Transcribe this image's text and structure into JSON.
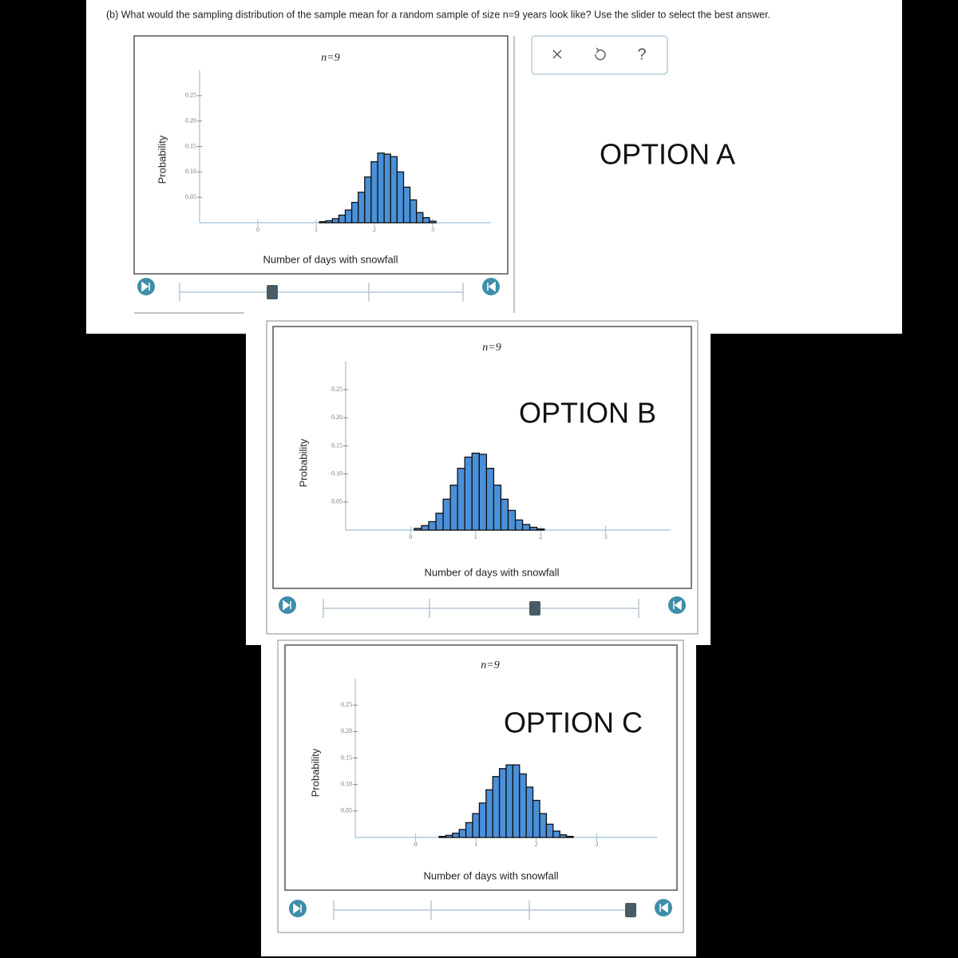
{
  "question": "(b) What would the sampling distribution of the sample mean for a random sample of size n=9 years look like? Use the slider to select the best answer.",
  "help_button": "?",
  "chart_data": [
    {
      "type": "histogram",
      "title": "n=9",
      "annotation": "OPTION A",
      "x_label": "Number of days with snowfall",
      "y_label": "Probability",
      "bins": [
        1.056,
        1.167,
        1.278,
        1.389,
        1.5,
        1.611,
        1.722,
        1.833,
        1.944,
        2.056,
        2.167,
        2.278,
        2.389,
        2.5,
        2.611,
        2.722,
        2.833,
        2.944,
        3.056
      ],
      "values": [
        0.002,
        0.004,
        0.008,
        0.015,
        0.025,
        0.04,
        0.06,
        0.09,
        0.12,
        0.137,
        0.135,
        0.13,
        0.1,
        0.07,
        0.045,
        0.02,
        0.01,
        0.003
      ],
      "color": "#4a90d9",
      "xlim": [
        -1,
        4
      ],
      "ylim": [
        0,
        0.3
      ],
      "xticks": [
        0,
        1,
        2,
        3
      ],
      "yticks": [
        0.05,
        {
          "value": 0.1,
          "label": "0.10"
        },
        0.15,
        {
          "value": 0.2,
          "label": "0.20"
        },
        0.25
      ]
    },
    {
      "type": "histogram",
      "title": "n=9",
      "annotation": "OPTION B",
      "x_label": "Number of days with snowfall",
      "y_label": "Probability",
      "bins": [
        0.056,
        0.167,
        0.278,
        0.389,
        0.5,
        0.611,
        0.722,
        0.833,
        0.944,
        1.056,
        1.167,
        1.278,
        1.389,
        1.5,
        1.611,
        1.722,
        1.833,
        1.944,
        2.056
      ],
      "values": [
        0.003,
        0.008,
        0.015,
        0.03,
        0.055,
        0.08,
        0.11,
        0.13,
        0.137,
        0.135,
        0.11,
        0.08,
        0.055,
        0.035,
        0.018,
        0.01,
        0.005,
        0.002
      ],
      "color": "#4a90d9",
      "xlim": [
        -1,
        4
      ],
      "ylim": [
        0,
        0.3
      ],
      "xticks": [
        0,
        1,
        2,
        3
      ],
      "yticks": [
        0.05,
        {
          "value": 0.1,
          "label": "0.10"
        },
        0.15,
        {
          "value": 0.2,
          "label": "0.20"
        },
        0.25
      ]
    },
    {
      "type": "histogram",
      "title": "n=9",
      "annotation": "OPTION C",
      "x_label": "Number of days with snowfall",
      "y_label": "Probability",
      "bins": [
        0.389,
        0.5,
        0.611,
        0.722,
        0.833,
        0.944,
        1.056,
        1.167,
        1.278,
        1.389,
        1.5,
        1.611,
        1.722,
        1.833,
        1.944,
        2.056,
        2.167,
        2.278,
        2.389,
        2.5,
        2.611
      ],
      "values": [
        0.002,
        0.004,
        0.008,
        0.015,
        0.028,
        0.045,
        0.065,
        0.09,
        0.115,
        0.13,
        0.137,
        0.137,
        0.12,
        0.095,
        0.07,
        0.045,
        0.025,
        0.012,
        0.005,
        0.002
      ],
      "color": "#4a90d9",
      "xlim": [
        -1,
        4
      ],
      "ylim": [
        0,
        0.3
      ],
      "xticks": [
        0,
        1,
        2,
        3
      ],
      "yticks": [
        0.05,
        {
          "value": 0.1,
          "label": "0.10"
        },
        0.15,
        {
          "value": 0.2,
          "label": "0.20"
        },
        0.25
      ]
    }
  ]
}
